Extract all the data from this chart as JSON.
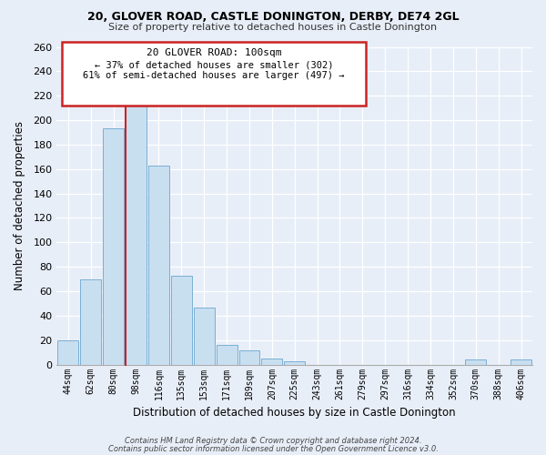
{
  "title": "20, GLOVER ROAD, CASTLE DONINGTON, DERBY, DE74 2GL",
  "subtitle": "Size of property relative to detached houses in Castle Donington",
  "xlabel": "Distribution of detached houses by size in Castle Donington",
  "ylabel": "Number of detached properties",
  "bar_color": "#c8dff0",
  "bar_edge_color": "#7aafd4",
  "highlight_bar_edge_color": "#cc2222",
  "background_color": "#e8eef8",
  "grid_color": "#ffffff",
  "categories": [
    "44sqm",
    "62sqm",
    "80sqm",
    "98sqm",
    "116sqm",
    "135sqm",
    "153sqm",
    "171sqm",
    "189sqm",
    "207sqm",
    "225sqm",
    "243sqm",
    "261sqm",
    "279sqm",
    "297sqm",
    "316sqm",
    "334sqm",
    "352sqm",
    "370sqm",
    "388sqm",
    "406sqm"
  ],
  "values": [
    20,
    70,
    193,
    213,
    163,
    73,
    47,
    16,
    12,
    5,
    3,
    0,
    0,
    0,
    0,
    0,
    0,
    0,
    4,
    0,
    4
  ],
  "highlight_index": 3,
  "annotation_title": "20 GLOVER ROAD: 100sqm",
  "annotation_line1": "← 37% of detached houses are smaller (302)",
  "annotation_line2": "61% of semi-detached houses are larger (497) →",
  "footer1": "Contains HM Land Registry data © Crown copyright and database right 2024.",
  "footer2": "Contains public sector information licensed under the Open Government Licence v3.0.",
  "ylim": [
    0,
    260
  ],
  "yticks": [
    0,
    20,
    40,
    60,
    80,
    100,
    120,
    140,
    160,
    180,
    200,
    220,
    240,
    260
  ]
}
